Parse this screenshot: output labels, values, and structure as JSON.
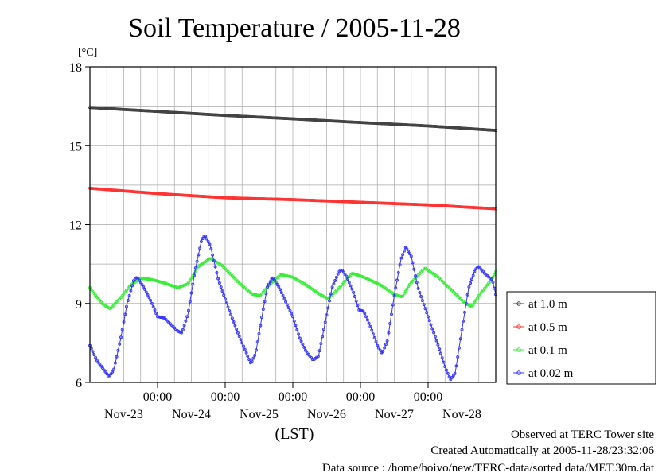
{
  "chart_data": {
    "type": "line",
    "title": "Soil Temperature / 2005-11-28",
    "xlabel": "(LST)",
    "ylabel": "[°C]",
    "ylim": [
      6,
      18
    ],
    "yticks": [
      6,
      9,
      12,
      15,
      18
    ],
    "xlim_days": [
      0,
      6
    ],
    "xtick_time_label": "00:00",
    "xtick_date_labels": [
      "Nov-23",
      "Nov-24",
      "Nov-25",
      "Nov-26",
      "Nov-27",
      "Nov-28"
    ],
    "grid": true,
    "legend_position": "right",
    "series": [
      {
        "name": "at 1.0 m",
        "color": "#404040",
        "points": [
          [
            0,
            16.45
          ],
          [
            1,
            16.3
          ],
          [
            2,
            16.15
          ],
          [
            3,
            16.02
          ],
          [
            4,
            15.88
          ],
          [
            5,
            15.75
          ],
          [
            6,
            15.58
          ]
        ]
      },
      {
        "name": "at 0.5 m",
        "color": "#ff3030",
        "points": [
          [
            0,
            13.38
          ],
          [
            1,
            13.18
          ],
          [
            2,
            13.02
          ],
          [
            3,
            12.95
          ],
          [
            4,
            12.85
          ],
          [
            5,
            12.75
          ],
          [
            6,
            12.6
          ]
        ]
      },
      {
        "name": "at 0.1 m",
        "color": "#33ee33",
        "points": [
          [
            0,
            9.6
          ],
          [
            0.1,
            9.25
          ],
          [
            0.2,
            8.95
          ],
          [
            0.3,
            8.8
          ],
          [
            0.45,
            9.2
          ],
          [
            0.6,
            9.7
          ],
          [
            0.75,
            9.95
          ],
          [
            0.9,
            9.92
          ],
          [
            1.1,
            9.78
          ],
          [
            1.3,
            9.6
          ],
          [
            1.45,
            9.75
          ],
          [
            1.6,
            10.4
          ],
          [
            1.78,
            10.72
          ],
          [
            1.95,
            10.45
          ],
          [
            2.2,
            9.8
          ],
          [
            2.4,
            9.35
          ],
          [
            2.52,
            9.3
          ],
          [
            2.65,
            9.7
          ],
          [
            2.82,
            10.1
          ],
          [
            3,
            10.0
          ],
          [
            3.2,
            9.7
          ],
          [
            3.4,
            9.35
          ],
          [
            3.52,
            9.18
          ],
          [
            3.65,
            9.5
          ],
          [
            3.88,
            10.15
          ],
          [
            4.05,
            10.0
          ],
          [
            4.3,
            9.7
          ],
          [
            4.5,
            9.35
          ],
          [
            4.62,
            9.25
          ],
          [
            4.72,
            9.7
          ],
          [
            4.95,
            10.35
          ],
          [
            5.15,
            10.0
          ],
          [
            5.35,
            9.5
          ],
          [
            5.55,
            9.0
          ],
          [
            5.65,
            8.88
          ],
          [
            5.75,
            9.3
          ],
          [
            5.95,
            9.95
          ],
          [
            6,
            10.2
          ]
        ]
      },
      {
        "name": "at 0.02 m",
        "color": "#3333ff",
        "points": [
          [
            0,
            7.4
          ],
          [
            0.1,
            6.85
          ],
          [
            0.2,
            6.5
          ],
          [
            0.28,
            6.22
          ],
          [
            0.35,
            6.45
          ],
          [
            0.45,
            7.6
          ],
          [
            0.55,
            9.0
          ],
          [
            0.65,
            9.9
          ],
          [
            0.7,
            10.0
          ],
          [
            0.8,
            9.6
          ],
          [
            0.9,
            9.1
          ],
          [
            1.0,
            8.5
          ],
          [
            1.1,
            8.45
          ],
          [
            1.2,
            8.2
          ],
          [
            1.3,
            7.95
          ],
          [
            1.36,
            7.88
          ],
          [
            1.45,
            8.6
          ],
          [
            1.55,
            10.2
          ],
          [
            1.65,
            11.4
          ],
          [
            1.7,
            11.6
          ],
          [
            1.78,
            11.2
          ],
          [
            1.9,
            9.9
          ],
          [
            2.05,
            8.8
          ],
          [
            2.2,
            7.8
          ],
          [
            2.3,
            7.2
          ],
          [
            2.38,
            6.72
          ],
          [
            2.45,
            7.1
          ],
          [
            2.55,
            8.6
          ],
          [
            2.62,
            9.6
          ],
          [
            2.7,
            10.0
          ],
          [
            2.8,
            9.6
          ],
          [
            2.88,
            9.15
          ],
          [
            3.0,
            8.5
          ],
          [
            3.1,
            7.7
          ],
          [
            3.2,
            7.15
          ],
          [
            3.3,
            6.85
          ],
          [
            3.38,
            7.0
          ],
          [
            3.48,
            8.3
          ],
          [
            3.58,
            9.6
          ],
          [
            3.68,
            10.2
          ],
          [
            3.72,
            10.3
          ],
          [
            3.8,
            10.0
          ],
          [
            3.9,
            9.4
          ],
          [
            3.98,
            8.75
          ],
          [
            4.05,
            8.7
          ],
          [
            4.15,
            8.1
          ],
          [
            4.25,
            7.4
          ],
          [
            4.32,
            7.1
          ],
          [
            4.4,
            7.6
          ],
          [
            4.5,
            9.3
          ],
          [
            4.6,
            10.7
          ],
          [
            4.67,
            11.15
          ],
          [
            4.75,
            10.8
          ],
          [
            4.85,
            9.6
          ],
          [
            5.0,
            8.5
          ],
          [
            5.15,
            7.4
          ],
          [
            5.25,
            6.6
          ],
          [
            5.33,
            6.1
          ],
          [
            5.4,
            6.35
          ],
          [
            5.5,
            8.0
          ],
          [
            5.6,
            9.6
          ],
          [
            5.7,
            10.3
          ],
          [
            5.75,
            10.4
          ],
          [
            5.85,
            10.1
          ],
          [
            5.95,
            9.9
          ],
          [
            6,
            9.35
          ]
        ]
      }
    ]
  },
  "footer": {
    "line1": "Observed at TERC Tower site",
    "line2": "Created Automatically at 2005-11-28/23:32:06",
    "line3": "Data source : /home/hoivo/new/TERC-data/sorted  data/MET.30m.dat"
  }
}
